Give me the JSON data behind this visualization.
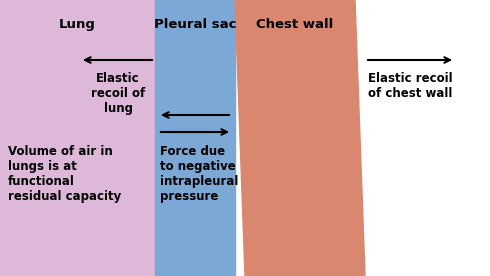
{
  "fig_width": 4.9,
  "fig_height": 2.76,
  "dpi": 100,
  "bg_color": "#ffffff",
  "lung_color": "#ddb8d8",
  "pleural_color": "#7ca8d5",
  "chest_color": "#d9876e",
  "label_lung": "Lung",
  "label_pleural": "Pleural sac",
  "label_chest": "Chest wall",
  "label_elastic_lung": "Elastic\nrecoil of\nlung",
  "label_elastic_chest": "Elastic recoil\nof chest wall",
  "label_force": "Force due\nto negative\nintrapleural\npressure",
  "label_volume": "Volume of air in\nlungs is at\nfunctional\nresidual capacity",
  "title_fontsize": 9.5,
  "label_fontsize": 8.5
}
